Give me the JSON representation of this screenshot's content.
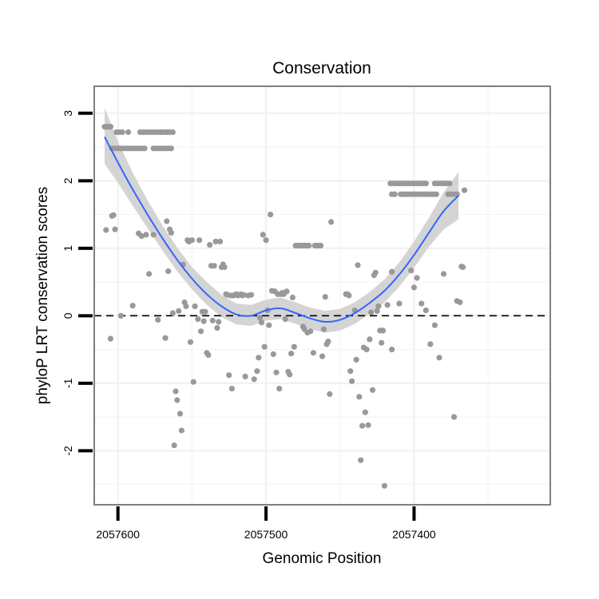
{
  "chart_data": {
    "type": "scatter",
    "title": "Conservation",
    "xlabel": "Genomic Position",
    "ylabel": "phyloP LRT conservation scores",
    "x_reversed": true,
    "xlim": [
      2057616,
      2057308
    ],
    "ylim": [
      -2.8,
      3.4
    ],
    "x_ticks": [
      2057600,
      2057500,
      2057400
    ],
    "y_ticks": [
      -2,
      -1,
      0,
      1,
      2,
      3
    ],
    "grid": true,
    "reference_line": 0,
    "colors": {
      "points": "#999999",
      "smooth_line": "#3366FF",
      "confidence_band": "#D4D4D4",
      "reference_line": "#000000",
      "panel_border": "#7F7F7F",
      "grid": "#F2F2F2"
    },
    "points": [
      [
        2057609,
        2.8
      ],
      [
        2057608,
        2.8
      ],
      [
        2057607,
        2.8
      ],
      [
        2057606,
        2.8
      ],
      [
        2057605,
        2.8
      ],
      [
        2057604,
        2.48
      ],
      [
        2057602,
        2.48
      ],
      [
        2057600,
        2.48
      ],
      [
        2057598,
        2.48
      ],
      [
        2057596,
        2.48
      ],
      [
        2057594,
        2.48
      ],
      [
        2057592,
        2.48
      ],
      [
        2057590,
        2.48
      ],
      [
        2057588,
        2.48
      ],
      [
        2057586,
        2.48
      ],
      [
        2057584,
        2.48
      ],
      [
        2057582,
        2.48
      ],
      [
        2057601,
        2.72
      ],
      [
        2057599,
        2.72
      ],
      [
        2057597,
        2.72
      ],
      [
        2057593,
        2.72
      ],
      [
        2057585,
        2.72
      ],
      [
        2057583,
        2.72
      ],
      [
        2057581,
        2.72
      ],
      [
        2057579,
        2.72
      ],
      [
        2057577,
        2.72
      ],
      [
        2057575,
        2.72
      ],
      [
        2057573,
        2.72
      ],
      [
        2057571,
        2.72
      ],
      [
        2057569,
        2.72
      ],
      [
        2057567,
        2.72
      ],
      [
        2057565,
        2.72
      ],
      [
        2057563,
        2.72
      ],
      [
        2057576,
        2.48
      ],
      [
        2057574,
        2.48
      ],
      [
        2057572,
        2.48
      ],
      [
        2057570,
        2.48
      ],
      [
        2057568,
        2.48
      ],
      [
        2057566,
        2.48
      ],
      [
        2057564,
        2.48
      ],
      [
        2057608,
        1.27
      ],
      [
        2057604,
        1.48
      ],
      [
        2057603,
        1.49
      ],
      [
        2057602,
        1.28
      ],
      [
        2057598,
        0
      ],
      [
        2057605,
        -0.34
      ],
      [
        2057590,
        0.15
      ],
      [
        2057586,
        1.22
      ],
      [
        2057584,
        1.18
      ],
      [
        2057581,
        1.2
      ],
      [
        2057579,
        0.62
      ],
      [
        2057576,
        1.2
      ],
      [
        2057573,
        -0.06
      ],
      [
        2057568,
        -0.33
      ],
      [
        2057567,
        1.4
      ],
      [
        2057566,
        0.66
      ],
      [
        2057565,
        1.28
      ],
      [
        2057564,
        1.23
      ],
      [
        2057563,
        0.04
      ],
      [
        2057561,
        -1.12
      ],
      [
        2057560,
        -1.25
      ],
      [
        2057559,
        0.07
      ],
      [
        2057558,
        -1.45
      ],
      [
        2057557,
        -1.7
      ],
      [
        2057556,
        0.76
      ],
      [
        2057562,
        -1.92
      ],
      [
        2057555,
        0.2
      ],
      [
        2057554,
        0.14
      ],
      [
        2057553,
        1.12
      ],
      [
        2057552,
        1.1
      ],
      [
        2057551,
        -0.39
      ],
      [
        2057550,
        1.12
      ],
      [
        2057549,
        -0.98
      ],
      [
        2057548,
        0.14
      ],
      [
        2057546,
        -0.05
      ],
      [
        2057545,
        1.12
      ],
      [
        2057544,
        -0.23
      ],
      [
        2057543,
        0.06
      ],
      [
        2057542,
        -0.08
      ],
      [
        2057541,
        0.06
      ],
      [
        2057540,
        -0.55
      ],
      [
        2057539,
        -0.58
      ],
      [
        2057538,
        1.05
      ],
      [
        2057537,
        0.74
      ],
      [
        2057536,
        -0.07
      ],
      [
        2057535,
        0.74
      ],
      [
        2057534,
        1.1
      ],
      [
        2057533,
        -0.18
      ],
      [
        2057532,
        -0.09
      ],
      [
        2057531,
        1.1
      ],
      [
        2057530,
        0.72
      ],
      [
        2057529,
        0.76
      ],
      [
        2057528,
        0.72
      ],
      [
        2057527,
        0.32
      ],
      [
        2057526,
        0.31
      ],
      [
        2057525,
        -0.88
      ],
      [
        2057524,
        0.3
      ],
      [
        2057523,
        -1.08
      ],
      [
        2057522,
        0.3
      ],
      [
        2057521,
        0.31
      ],
      [
        2057520,
        0.32
      ],
      [
        2057519,
        0.3
      ],
      [
        2057518,
        0.31
      ],
      [
        2057517,
        0.32
      ],
      [
        2057516,
        0.3
      ],
      [
        2057515,
        0.31
      ],
      [
        2057514,
        -0.9
      ],
      [
        2057512,
        0.3
      ],
      [
        2057510,
        0.31
      ],
      [
        2057508,
        -0.94
      ],
      [
        2057506,
        -0.82
      ],
      [
        2057505,
        -0.62
      ],
      [
        2057504,
        -0.03
      ],
      [
        2057503,
        -0.1
      ],
      [
        2057502,
        1.2
      ],
      [
        2057501,
        -0.46
      ],
      [
        2057500,
        1.12
      ],
      [
        2057499,
        0.08
      ],
      [
        2057498,
        -0.14
      ],
      [
        2057497,
        1.5
      ],
      [
        2057496,
        0.37
      ],
      [
        2057495,
        -0.57
      ],
      [
        2057494,
        0.36
      ],
      [
        2057493,
        -0.84
      ],
      [
        2057492,
        0.32
      ],
      [
        2057491,
        -1.08
      ],
      [
        2057490,
        0.32
      ],
      [
        2057489,
        0.34
      ],
      [
        2057488,
        0.32
      ],
      [
        2057487,
        -0.05
      ],
      [
        2057486,
        0.36
      ],
      [
        2057485,
        -0.83
      ],
      [
        2057484,
        -0.87
      ],
      [
        2057483,
        -0.56
      ],
      [
        2057482,
        0.27
      ],
      [
        2057481,
        -0.46
      ],
      [
        2057480,
        1.04
      ],
      [
        2057479,
        1.04
      ],
      [
        2057478,
        1.04
      ],
      [
        2057477,
        1.04
      ],
      [
        2057476,
        1.04
      ],
      [
        2057475,
        1.04
      ],
      [
        2057474,
        1.04
      ],
      [
        2057473,
        1.04
      ],
      [
        2057472,
        1.04
      ],
      [
        2057471,
        1.04
      ],
      [
        2057475,
        -0.16
      ],
      [
        2057474,
        -0.2
      ],
      [
        2057472,
        -0.25
      ],
      [
        2057470,
        -0.23
      ],
      [
        2057468,
        -0.55
      ],
      [
        2057467,
        1.04
      ],
      [
        2057466,
        1.04
      ],
      [
        2057465,
        1.04
      ],
      [
        2057464,
        1.04
      ],
      [
        2057463,
        1.04
      ],
      [
        2057462,
        -0.6
      ],
      [
        2057461,
        -0.2
      ],
      [
        2057460,
        0.28
      ],
      [
        2057459,
        -0.42
      ],
      [
        2057458,
        -0.38
      ],
      [
        2057457,
        -1.16
      ],
      [
        2057456,
        1.39
      ],
      [
        2057446,
        0.32
      ],
      [
        2057445,
        0.32
      ],
      [
        2057444,
        0.3
      ],
      [
        2057443,
        -0.82
      ],
      [
        2057442,
        -0.97
      ],
      [
        2057440,
        0.08
      ],
      [
        2057439,
        -0.65
      ],
      [
        2057438,
        0.75
      ],
      [
        2057437,
        -1.2
      ],
      [
        2057436,
        -2.14
      ],
      [
        2057435,
        -1.63
      ],
      [
        2057434,
        -0.47
      ],
      [
        2057433,
        -1.43
      ],
      [
        2057432,
        -0.5
      ],
      [
        2057431,
        -1.62
      ],
      [
        2057430,
        -0.35
      ],
      [
        2057429,
        0.05
      ],
      [
        2057428,
        -1.1
      ],
      [
        2057427,
        0.6
      ],
      [
        2057426,
        0.64
      ],
      [
        2057425,
        0.07
      ],
      [
        2057424,
        0.14
      ],
      [
        2057423,
        -0.22
      ],
      [
        2057422,
        -0.4
      ],
      [
        2057421,
        -0.22
      ],
      [
        2057420,
        -2.52
      ],
      [
        2057418,
        0.16
      ],
      [
        2057415,
        -0.5
      ],
      [
        2057416,
        1.96
      ],
      [
        2057414,
        1.96
      ],
      [
        2057412,
        1.96
      ],
      [
        2057410,
        1.96
      ],
      [
        2057408,
        1.96
      ],
      [
        2057406,
        1.96
      ],
      [
        2057404,
        1.96
      ],
      [
        2057402,
        1.96
      ],
      [
        2057400,
        1.96
      ],
      [
        2057398,
        1.96
      ],
      [
        2057396,
        1.96
      ],
      [
        2057394,
        1.96
      ],
      [
        2057392,
        1.96
      ],
      [
        2057386,
        1.96
      ],
      [
        2057384,
        1.96
      ],
      [
        2057382,
        1.96
      ],
      [
        2057380,
        1.96
      ],
      [
        2057378,
        1.96
      ],
      [
        2057376,
        1.96
      ],
      [
        2057415,
        1.8
      ],
      [
        2057413,
        1.8
      ],
      [
        2057409,
        1.8
      ],
      [
        2057407,
        1.8
      ],
      [
        2057405,
        1.8
      ],
      [
        2057403,
        1.8
      ],
      [
        2057401,
        1.8
      ],
      [
        2057399,
        1.8
      ],
      [
        2057397,
        1.8
      ],
      [
        2057395,
        1.8
      ],
      [
        2057393,
        1.8
      ],
      [
        2057391,
        1.8
      ],
      [
        2057389,
        1.8
      ],
      [
        2057387,
        1.8
      ],
      [
        2057385,
        1.8
      ],
      [
        2057377,
        1.8
      ],
      [
        2057375,
        1.8
      ],
      [
        2057373,
        1.8
      ],
      [
        2057371,
        1.8
      ],
      [
        2057415,
        0.65
      ],
      [
        2057410,
        0.18
      ],
      [
        2057402,
        0.67
      ],
      [
        2057400,
        0.42
      ],
      [
        2057398,
        0.56
      ],
      [
        2057395,
        0.18
      ],
      [
        2057392,
        0.08
      ],
      [
        2057389,
        -0.42
      ],
      [
        2057386,
        -0.14
      ],
      [
        2057383,
        -0.62
      ],
      [
        2057380,
        0.62
      ],
      [
        2057373,
        -1.5
      ],
      [
        2057371,
        0.22
      ],
      [
        2057369,
        0.2
      ],
      [
        2057368,
        0.73
      ],
      [
        2057367,
        0.72
      ],
      [
        2057366,
        1.86
      ]
    ],
    "smooth_curve": [
      [
        2057609,
        2.65
      ],
      [
        2057600,
        2.27
      ],
      [
        2057590,
        1.87
      ],
      [
        2057580,
        1.5
      ],
      [
        2057570,
        1.15
      ],
      [
        2057560,
        0.83
      ],
      [
        2057550,
        0.55
      ],
      [
        2057540,
        0.32
      ],
      [
        2057530,
        0.14
      ],
      [
        2057520,
        0.02
      ],
      [
        2057510,
        0.0
      ],
      [
        2057500,
        0.08
      ],
      [
        2057490,
        0.11
      ],
      [
        2057480,
        0.04
      ],
      [
        2057470,
        -0.04
      ],
      [
        2057460,
        -0.09
      ],
      [
        2057450,
        -0.06
      ],
      [
        2057440,
        0.04
      ],
      [
        2057430,
        0.19
      ],
      [
        2057420,
        0.37
      ],
      [
        2057410,
        0.61
      ],
      [
        2057400,
        0.9
      ],
      [
        2057390,
        1.23
      ],
      [
        2057380,
        1.55
      ],
      [
        2057370,
        1.78
      ]
    ],
    "confidence_band": [
      [
        2057609,
        3.08,
        2.25
      ],
      [
        2057600,
        2.58,
        1.97
      ],
      [
        2057590,
        2.12,
        1.63
      ],
      [
        2057580,
        1.71,
        1.3
      ],
      [
        2057570,
        1.34,
        0.97
      ],
      [
        2057560,
        1.01,
        0.66
      ],
      [
        2057550,
        0.72,
        0.39
      ],
      [
        2057540,
        0.5,
        0.16
      ],
      [
        2057530,
        0.31,
        -0.02
      ],
      [
        2057520,
        0.18,
        -0.13
      ],
      [
        2057510,
        0.16,
        -0.15
      ],
      [
        2057500,
        0.24,
        -0.07
      ],
      [
        2057490,
        0.27,
        -0.05
      ],
      [
        2057480,
        0.2,
        -0.12
      ],
      [
        2057470,
        0.12,
        -0.2
      ],
      [
        2057460,
        0.07,
        -0.25
      ],
      [
        2057450,
        0.1,
        -0.22
      ],
      [
        2057440,
        0.2,
        -0.12
      ],
      [
        2057430,
        0.35,
        0.03
      ],
      [
        2057420,
        0.54,
        0.2
      ],
      [
        2057410,
        0.79,
        0.43
      ],
      [
        2057400,
        1.1,
        0.71
      ],
      [
        2057390,
        1.45,
        1.02
      ],
      [
        2057380,
        1.83,
        1.28
      ],
      [
        2057370,
        2.13,
        1.43
      ]
    ]
  }
}
